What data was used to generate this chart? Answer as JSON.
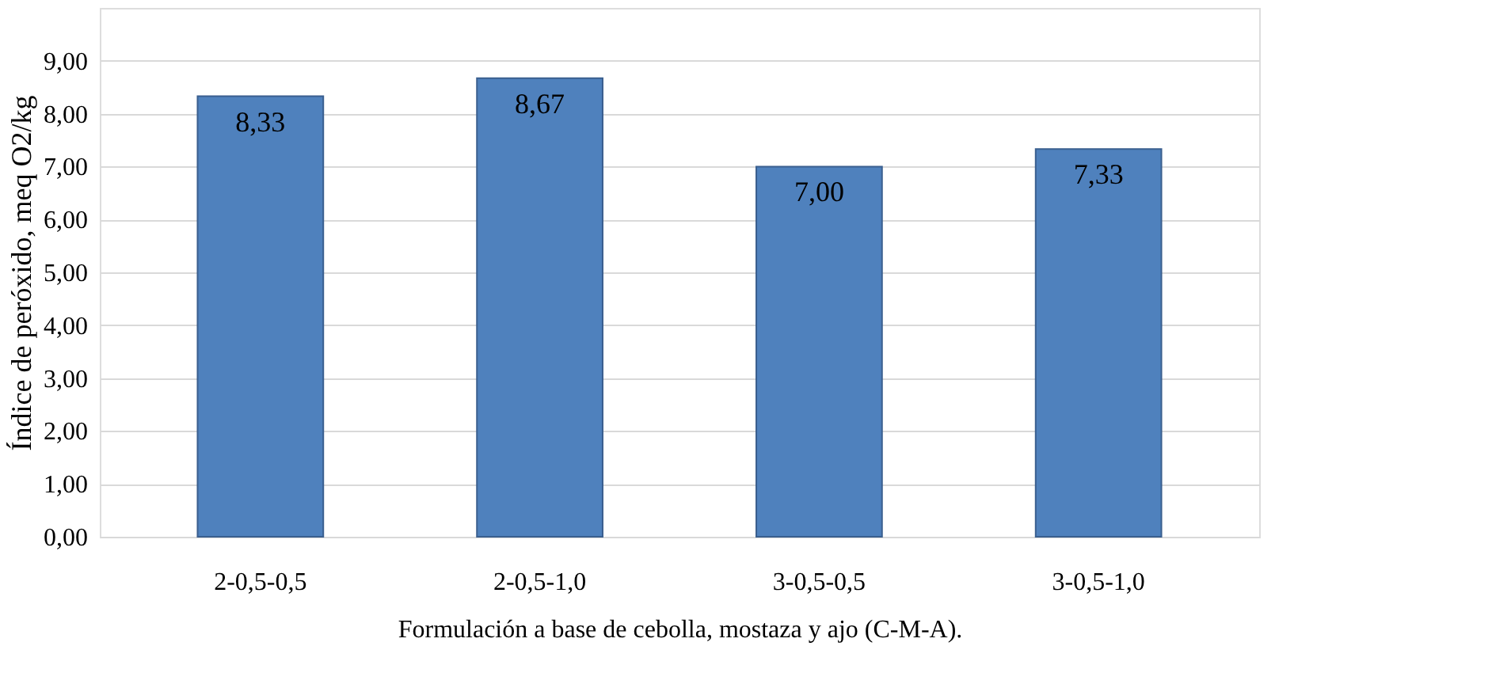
{
  "chart_data": {
    "type": "bar",
    "xlabel": "Formulación a base de cebolla, mostaza y ajo (C-M-A).",
    "ylabel": "Índice de peróxido, meq O2/kg",
    "categories": [
      "2-0,5-0,5",
      "2-0,5-1,0",
      "3-0,5-0,5",
      "3-0,5-1,0"
    ],
    "values": [
      8.33,
      8.67,
      7.0,
      7.33
    ],
    "value_labels": [
      "8,33",
      "8,67",
      "7,00",
      "7,33"
    ],
    "color": "#4f81bd",
    "ylim": [
      0,
      10
    ],
    "yticks": [
      {
        "value": 0,
        "label": "0,00"
      },
      {
        "value": 1,
        "label": "1,00"
      },
      {
        "value": 2,
        "label": "2,00"
      },
      {
        "value": 3,
        "label": "3,00"
      },
      {
        "value": 4,
        "label": "4,00"
      },
      {
        "value": 5,
        "label": "5,00"
      },
      {
        "value": 6,
        "label": "6,00"
      },
      {
        "value": 7,
        "label": "7,00"
      },
      {
        "value": 8,
        "label": "8,00"
      },
      {
        "value": 9,
        "label": "9,00"
      }
    ],
    "grid": "y",
    "legend": false
  }
}
